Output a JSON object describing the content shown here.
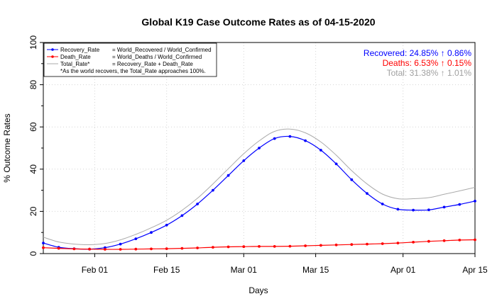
{
  "chart_data": {
    "type": "line",
    "title": "Global K19 Case Outcome Rates as of 04-15-2020",
    "xlabel": "Days",
    "ylabel": "% Outcome Rates",
    "xlim": [
      "2020-01-22",
      "2020-04-15"
    ],
    "ylim": [
      0,
      100
    ],
    "x_ticks": [
      "Feb 01",
      "Feb 15",
      "Mar 01",
      "Mar 15",
      "Apr 01",
      "Apr 15"
    ],
    "y_ticks": [
      0,
      20,
      40,
      60,
      80,
      100
    ],
    "grid": true,
    "legend_placement": "top-left",
    "legend": {
      "entries": [
        {
          "name": "Recovery_Rate",
          "definition": "= World_Recovered / World_Confirmed",
          "color": "#0000ff",
          "style": "line-points"
        },
        {
          "name": "Death_Rate",
          "definition": "= World_Deaths / World_Confirmed",
          "color": "#ff0000",
          "style": "line-points"
        },
        {
          "name": "Total_Rate*",
          "definition": "= Recovery_Rate + Death_Rate",
          "color": "#aaaaaa",
          "style": "line"
        }
      ],
      "note": "*As the world recovers, the Total_Rate approaches 100%."
    },
    "annotations": [
      {
        "text": "Recovered: 24.85% ↑ 0.86%",
        "color": "#0000ff"
      },
      {
        "text": "Deaths: 6.53% ↑ 0.15%",
        "color": "#ff0000"
      },
      {
        "text": "Total: 31.38% ↑ 1.01%",
        "color": "#a0a0a0"
      }
    ],
    "series": [
      {
        "name": "Recovery_Rate",
        "color": "#0000ff",
        "points": [
          [
            "2020-01-22",
            5.0
          ],
          [
            "2020-01-25",
            3.0
          ],
          [
            "2020-01-28",
            2.3
          ],
          [
            "2020-01-31",
            2.1
          ],
          [
            "2020-02-03",
            2.8
          ],
          [
            "2020-02-06",
            4.5
          ],
          [
            "2020-02-09",
            7.0
          ],
          [
            "2020-02-12",
            10.0
          ],
          [
            "2020-02-15",
            13.5
          ],
          [
            "2020-02-18",
            18.0
          ],
          [
            "2020-02-21",
            23.5
          ],
          [
            "2020-02-24",
            30.0
          ],
          [
            "2020-02-27",
            37.0
          ],
          [
            "2020-03-01",
            44.0
          ],
          [
            "2020-03-04",
            50.0
          ],
          [
            "2020-03-07",
            54.5
          ],
          [
            "2020-03-10",
            55.5
          ],
          [
            "2020-03-13",
            53.5
          ],
          [
            "2020-03-16",
            49.0
          ],
          [
            "2020-03-19",
            42.5
          ],
          [
            "2020-03-22",
            35.0
          ],
          [
            "2020-03-25",
            28.5
          ],
          [
            "2020-03-28",
            23.5
          ],
          [
            "2020-03-31",
            21.0
          ],
          [
            "2020-04-03",
            20.6
          ],
          [
            "2020-04-06",
            20.7
          ],
          [
            "2020-04-09",
            22.0
          ],
          [
            "2020-04-12",
            23.3
          ],
          [
            "2020-04-15",
            24.85
          ]
        ]
      },
      {
        "name": "Death_Rate",
        "color": "#ff0000",
        "points": [
          [
            "2020-01-22",
            2.8
          ],
          [
            "2020-01-25",
            2.5
          ],
          [
            "2020-01-28",
            2.2
          ],
          [
            "2020-01-31",
            2.1
          ],
          [
            "2020-02-03",
            2.0
          ],
          [
            "2020-02-06",
            2.0
          ],
          [
            "2020-02-09",
            2.1
          ],
          [
            "2020-02-12",
            2.2
          ],
          [
            "2020-02-15",
            2.3
          ],
          [
            "2020-02-18",
            2.5
          ],
          [
            "2020-02-21",
            2.7
          ],
          [
            "2020-02-24",
            3.0
          ],
          [
            "2020-02-27",
            3.2
          ],
          [
            "2020-03-01",
            3.3
          ],
          [
            "2020-03-04",
            3.4
          ],
          [
            "2020-03-07",
            3.4
          ],
          [
            "2020-03-10",
            3.5
          ],
          [
            "2020-03-13",
            3.7
          ],
          [
            "2020-03-16",
            3.9
          ],
          [
            "2020-03-19",
            4.1
          ],
          [
            "2020-03-22",
            4.3
          ],
          [
            "2020-03-25",
            4.5
          ],
          [
            "2020-03-28",
            4.7
          ],
          [
            "2020-03-31",
            5.0
          ],
          [
            "2020-04-03",
            5.4
          ],
          [
            "2020-04-06",
            5.8
          ],
          [
            "2020-04-09",
            6.1
          ],
          [
            "2020-04-12",
            6.4
          ],
          [
            "2020-04-15",
            6.53
          ]
        ]
      },
      {
        "name": "Total_Rate*",
        "color": "#aaaaaa",
        "points": [
          [
            "2020-01-22",
            7.8
          ],
          [
            "2020-01-25",
            5.5
          ],
          [
            "2020-01-28",
            4.5
          ],
          [
            "2020-01-31",
            4.2
          ],
          [
            "2020-02-03",
            4.8
          ],
          [
            "2020-02-06",
            6.5
          ],
          [
            "2020-02-09",
            9.1
          ],
          [
            "2020-02-12",
            12.2
          ],
          [
            "2020-02-15",
            15.8
          ],
          [
            "2020-02-18",
            20.5
          ],
          [
            "2020-02-21",
            26.2
          ],
          [
            "2020-02-24",
            33.0
          ],
          [
            "2020-02-27",
            40.2
          ],
          [
            "2020-03-01",
            47.3
          ],
          [
            "2020-03-04",
            53.4
          ],
          [
            "2020-03-07",
            57.9
          ],
          [
            "2020-03-10",
            59.0
          ],
          [
            "2020-03-13",
            57.2
          ],
          [
            "2020-03-16",
            52.9
          ],
          [
            "2020-03-19",
            46.6
          ],
          [
            "2020-03-22",
            39.3
          ],
          [
            "2020-03-25",
            33.0
          ],
          [
            "2020-03-28",
            28.2
          ],
          [
            "2020-03-31",
            26.0
          ],
          [
            "2020-04-03",
            26.0
          ],
          [
            "2020-04-06",
            26.5
          ],
          [
            "2020-04-09",
            28.1
          ],
          [
            "2020-04-12",
            29.7
          ],
          [
            "2020-04-15",
            31.38
          ]
        ]
      }
    ]
  }
}
